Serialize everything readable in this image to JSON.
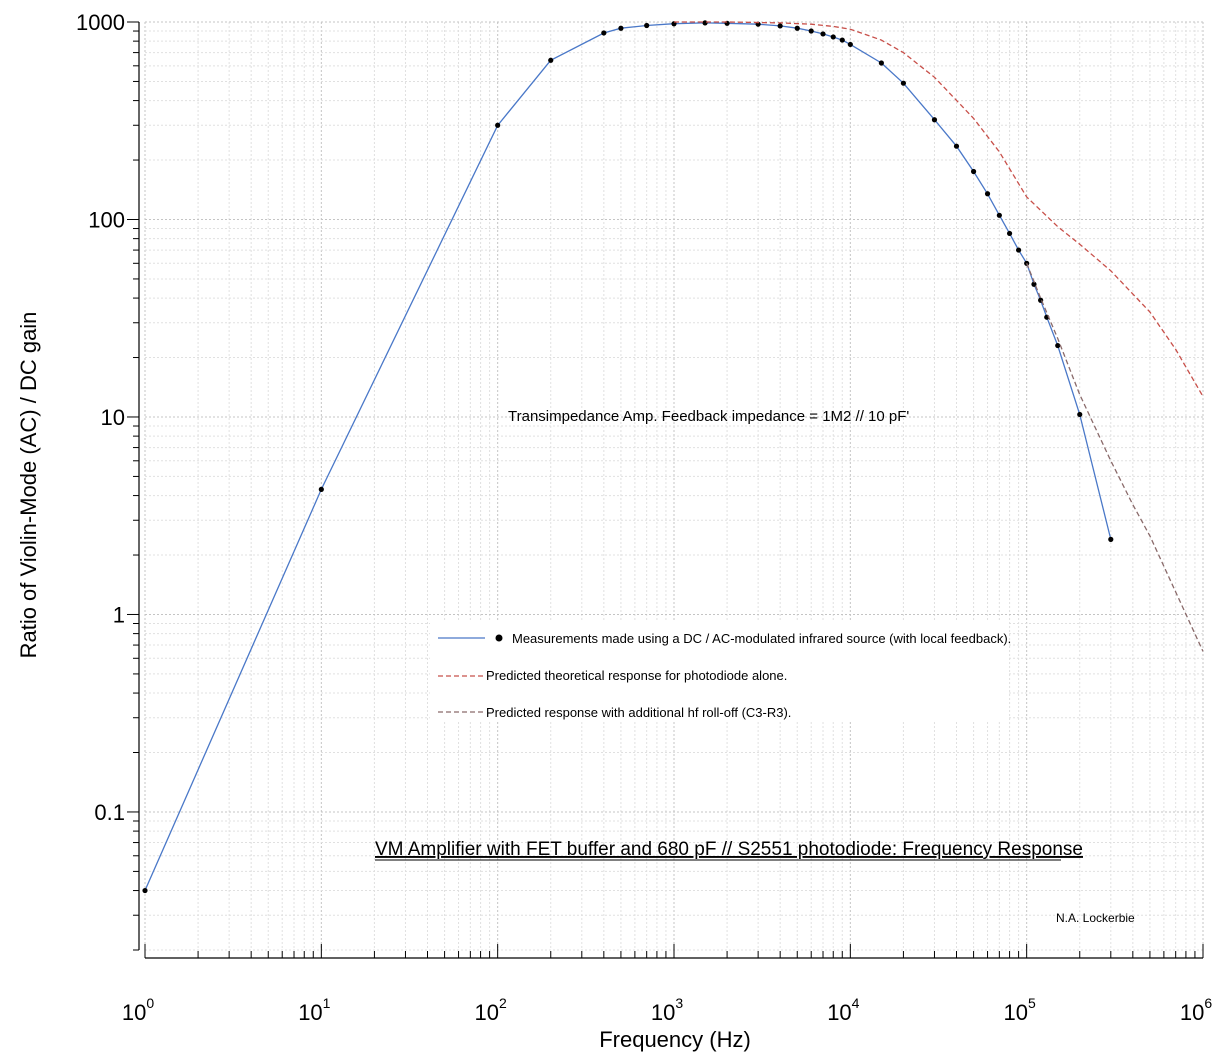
{
  "chart_data": {
    "type": "line",
    "title": "VM Amplifier with FET buffer and 680 pF // S2551 photodiode: Frequency Response",
    "annotation": "Transimpedance Amp. Feedback impedance = 1M2 // 10 pF'",
    "author": "N.A. Lockerbie",
    "xlabel": "Frequency (Hz)",
    "ylabel": "Ratio of Violin-Mode (AC) / DC gain",
    "xscale": "log",
    "yscale": "log",
    "xlim": [
      1,
      1000000
    ],
    "ylim": [
      0.02,
      1000
    ],
    "grid": true,
    "legend_position": "center",
    "x_ticks": [
      {
        "base": "10",
        "exp": "0"
      },
      {
        "base": "10",
        "exp": "1"
      },
      {
        "base": "10",
        "exp": "2"
      },
      {
        "base": "10",
        "exp": "3"
      },
      {
        "base": "10",
        "exp": "4"
      },
      {
        "base": "10",
        "exp": "5"
      },
      {
        "base": "10",
        "exp": "6"
      }
    ],
    "y_ticks": [
      "0.1",
      "1",
      "10",
      "100",
      "1000"
    ],
    "series": [
      {
        "name": "Measurements made using a DC / AC-modulated infrared source (with local feedback).",
        "style": "solid-with-markers",
        "color": "#4a78c8",
        "x": [
          1,
          10,
          100,
          200,
          400,
          500,
          700,
          1000,
          1500,
          2000,
          3000,
          4000,
          5000,
          6000,
          7000,
          8000,
          9000,
          10000,
          15000,
          20000,
          30000,
          40000,
          50000,
          60000,
          70000,
          80000,
          90000,
          100000,
          110000,
          120000,
          130000,
          150000,
          200000,
          300000
        ],
        "y": [
          0.04,
          4.3,
          300,
          640,
          880,
          930,
          960,
          980,
          990,
          985,
          975,
          955,
          930,
          900,
          870,
          840,
          810,
          770,
          620,
          490,
          320,
          235,
          175,
          135,
          105,
          85,
          70,
          60,
          47,
          39,
          32,
          23,
          10.3,
          2.4
        ]
      },
      {
        "name": "Predicted theoretical response for photodiode alone.",
        "style": "dashed",
        "color": "#c8504a",
        "x": [
          1000,
          2000,
          4000,
          6000,
          8000,
          10000,
          15000,
          20000,
          30000,
          50000,
          70000,
          100000,
          150000,
          200000,
          300000,
          500000,
          700000,
          1000000
        ],
        "y": [
          1000,
          1000,
          990,
          975,
          950,
          920,
          810,
          700,
          525,
          325,
          220,
          130,
          92,
          75,
          55,
          34,
          22,
          12.7
        ]
      },
      {
        "name": "Predicted response with additional hf roll-off (C3-R3).",
        "style": "dashed",
        "color": "#8a6a6a",
        "x": [
          100000,
          120000,
          150000,
          200000,
          300000,
          400000,
          500000,
          700000,
          1000000
        ],
        "y": [
          60,
          40,
          25,
          13,
          6.0,
          3.6,
          2.5,
          1.3,
          0.65
        ]
      }
    ]
  }
}
